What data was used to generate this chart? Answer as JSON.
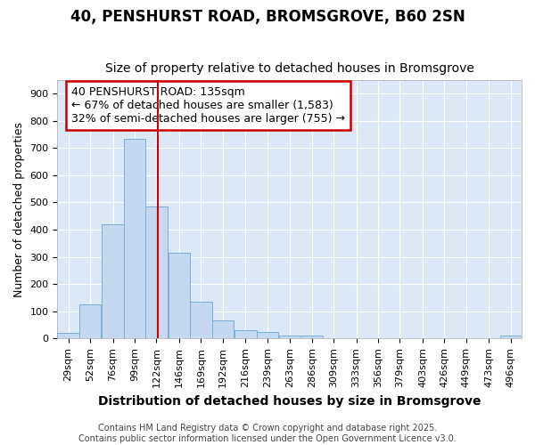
{
  "title": "40, PENSHURST ROAD, BROMSGROVE, B60 2SN",
  "subtitle": "Size of property relative to detached houses in Bromsgrove",
  "xlabel": "Distribution of detached houses by size in Bromsgrove",
  "ylabel": "Number of detached properties",
  "bin_labels": [
    "29sqm",
    "52sqm",
    "76sqm",
    "99sqm",
    "122sqm",
    "146sqm",
    "169sqm",
    "192sqm",
    "216sqm",
    "239sqm",
    "263sqm",
    "286sqm",
    "309sqm",
    "333sqm",
    "356sqm",
    "379sqm",
    "403sqm",
    "426sqm",
    "449sqm",
    "473sqm",
    "496sqm"
  ],
  "bin_edges": [
    29,
    52,
    76,
    99,
    122,
    146,
    169,
    192,
    216,
    239,
    263,
    286,
    309,
    333,
    356,
    379,
    403,
    426,
    449,
    473,
    496
  ],
  "bar_heights": [
    20,
    125,
    420,
    735,
    485,
    315,
    135,
    65,
    30,
    25,
    10,
    10,
    0,
    0,
    0,
    0,
    0,
    0,
    0,
    0,
    10
  ],
  "bar_color": "#c5d8f0",
  "bar_edge_color": "#7aafd4",
  "vline_x": 135,
  "vline_color": "#cc0000",
  "annotation_text_line1": "40 PENSHURST ROAD: 135sqm",
  "annotation_text_line2": "← 67% of detached houses are smaller (1,583)",
  "annotation_text_line3": "32% of semi-detached houses are larger (755) →",
  "annotation_box_color": "#cc0000",
  "ylim": [
    0,
    950
  ],
  "yticks": [
    0,
    100,
    200,
    300,
    400,
    500,
    600,
    700,
    800,
    900
  ],
  "background_color": "#dce8f5",
  "grid_color": "#ffffff",
  "footnote": "Contains HM Land Registry data © Crown copyright and database right 2025.\nContains public sector information licensed under the Open Government Licence v3.0.",
  "title_fontsize": 12,
  "subtitle_fontsize": 10,
  "xlabel_fontsize": 10,
  "ylabel_fontsize": 9,
  "tick_fontsize": 8,
  "annot_fontsize": 9,
  "footnote_fontsize": 7
}
